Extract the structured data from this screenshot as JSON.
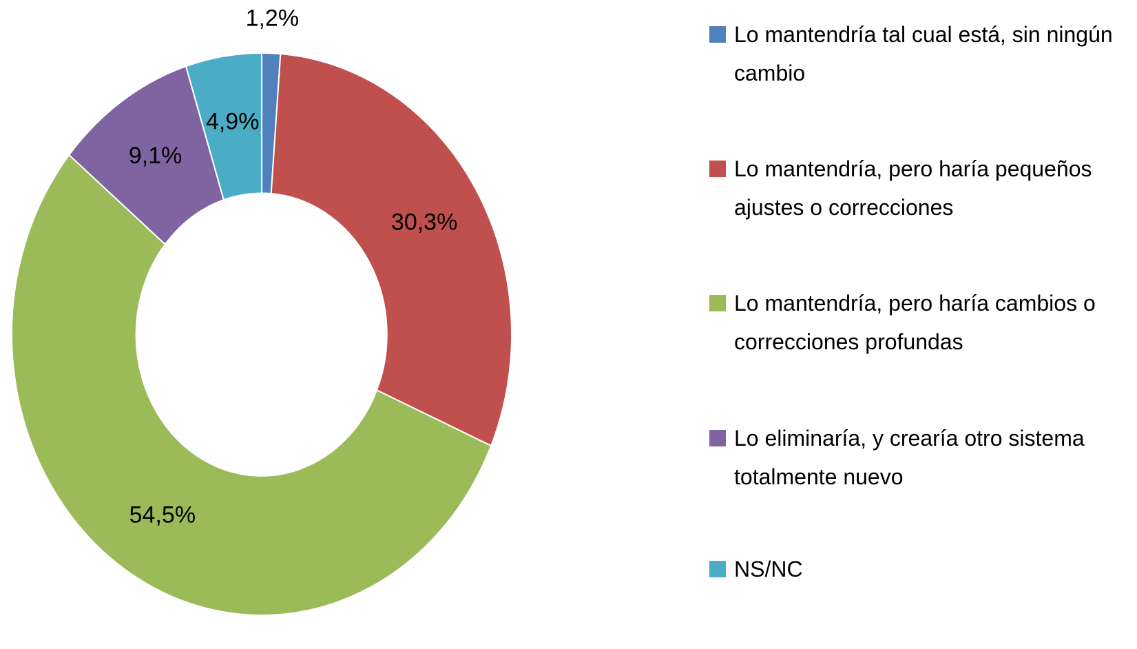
{
  "chart_data": {
    "type": "donut",
    "categories": [
      "Lo mantendría tal cual está, sin ningún cambio",
      "Lo mantendría, pero haría pequeños ajustes o correcciones",
      "Lo mantendría, pero haría cambios o correcciones profundas",
      "Lo eliminaría, y crearía otro sistema totalmente nuevo",
      "NS/NC"
    ],
    "values": [
      1.2,
      30.3,
      54.5,
      9.1,
      4.9
    ],
    "value_labels": [
      "1,2%",
      "30,3%",
      "54,5%",
      "9,1%",
      "4,9%"
    ],
    "colors": [
      "#4f81bd",
      "#c0504d",
      "#9bbb59",
      "#8064a2",
      "#4bacc6"
    ],
    "legend": "right"
  }
}
